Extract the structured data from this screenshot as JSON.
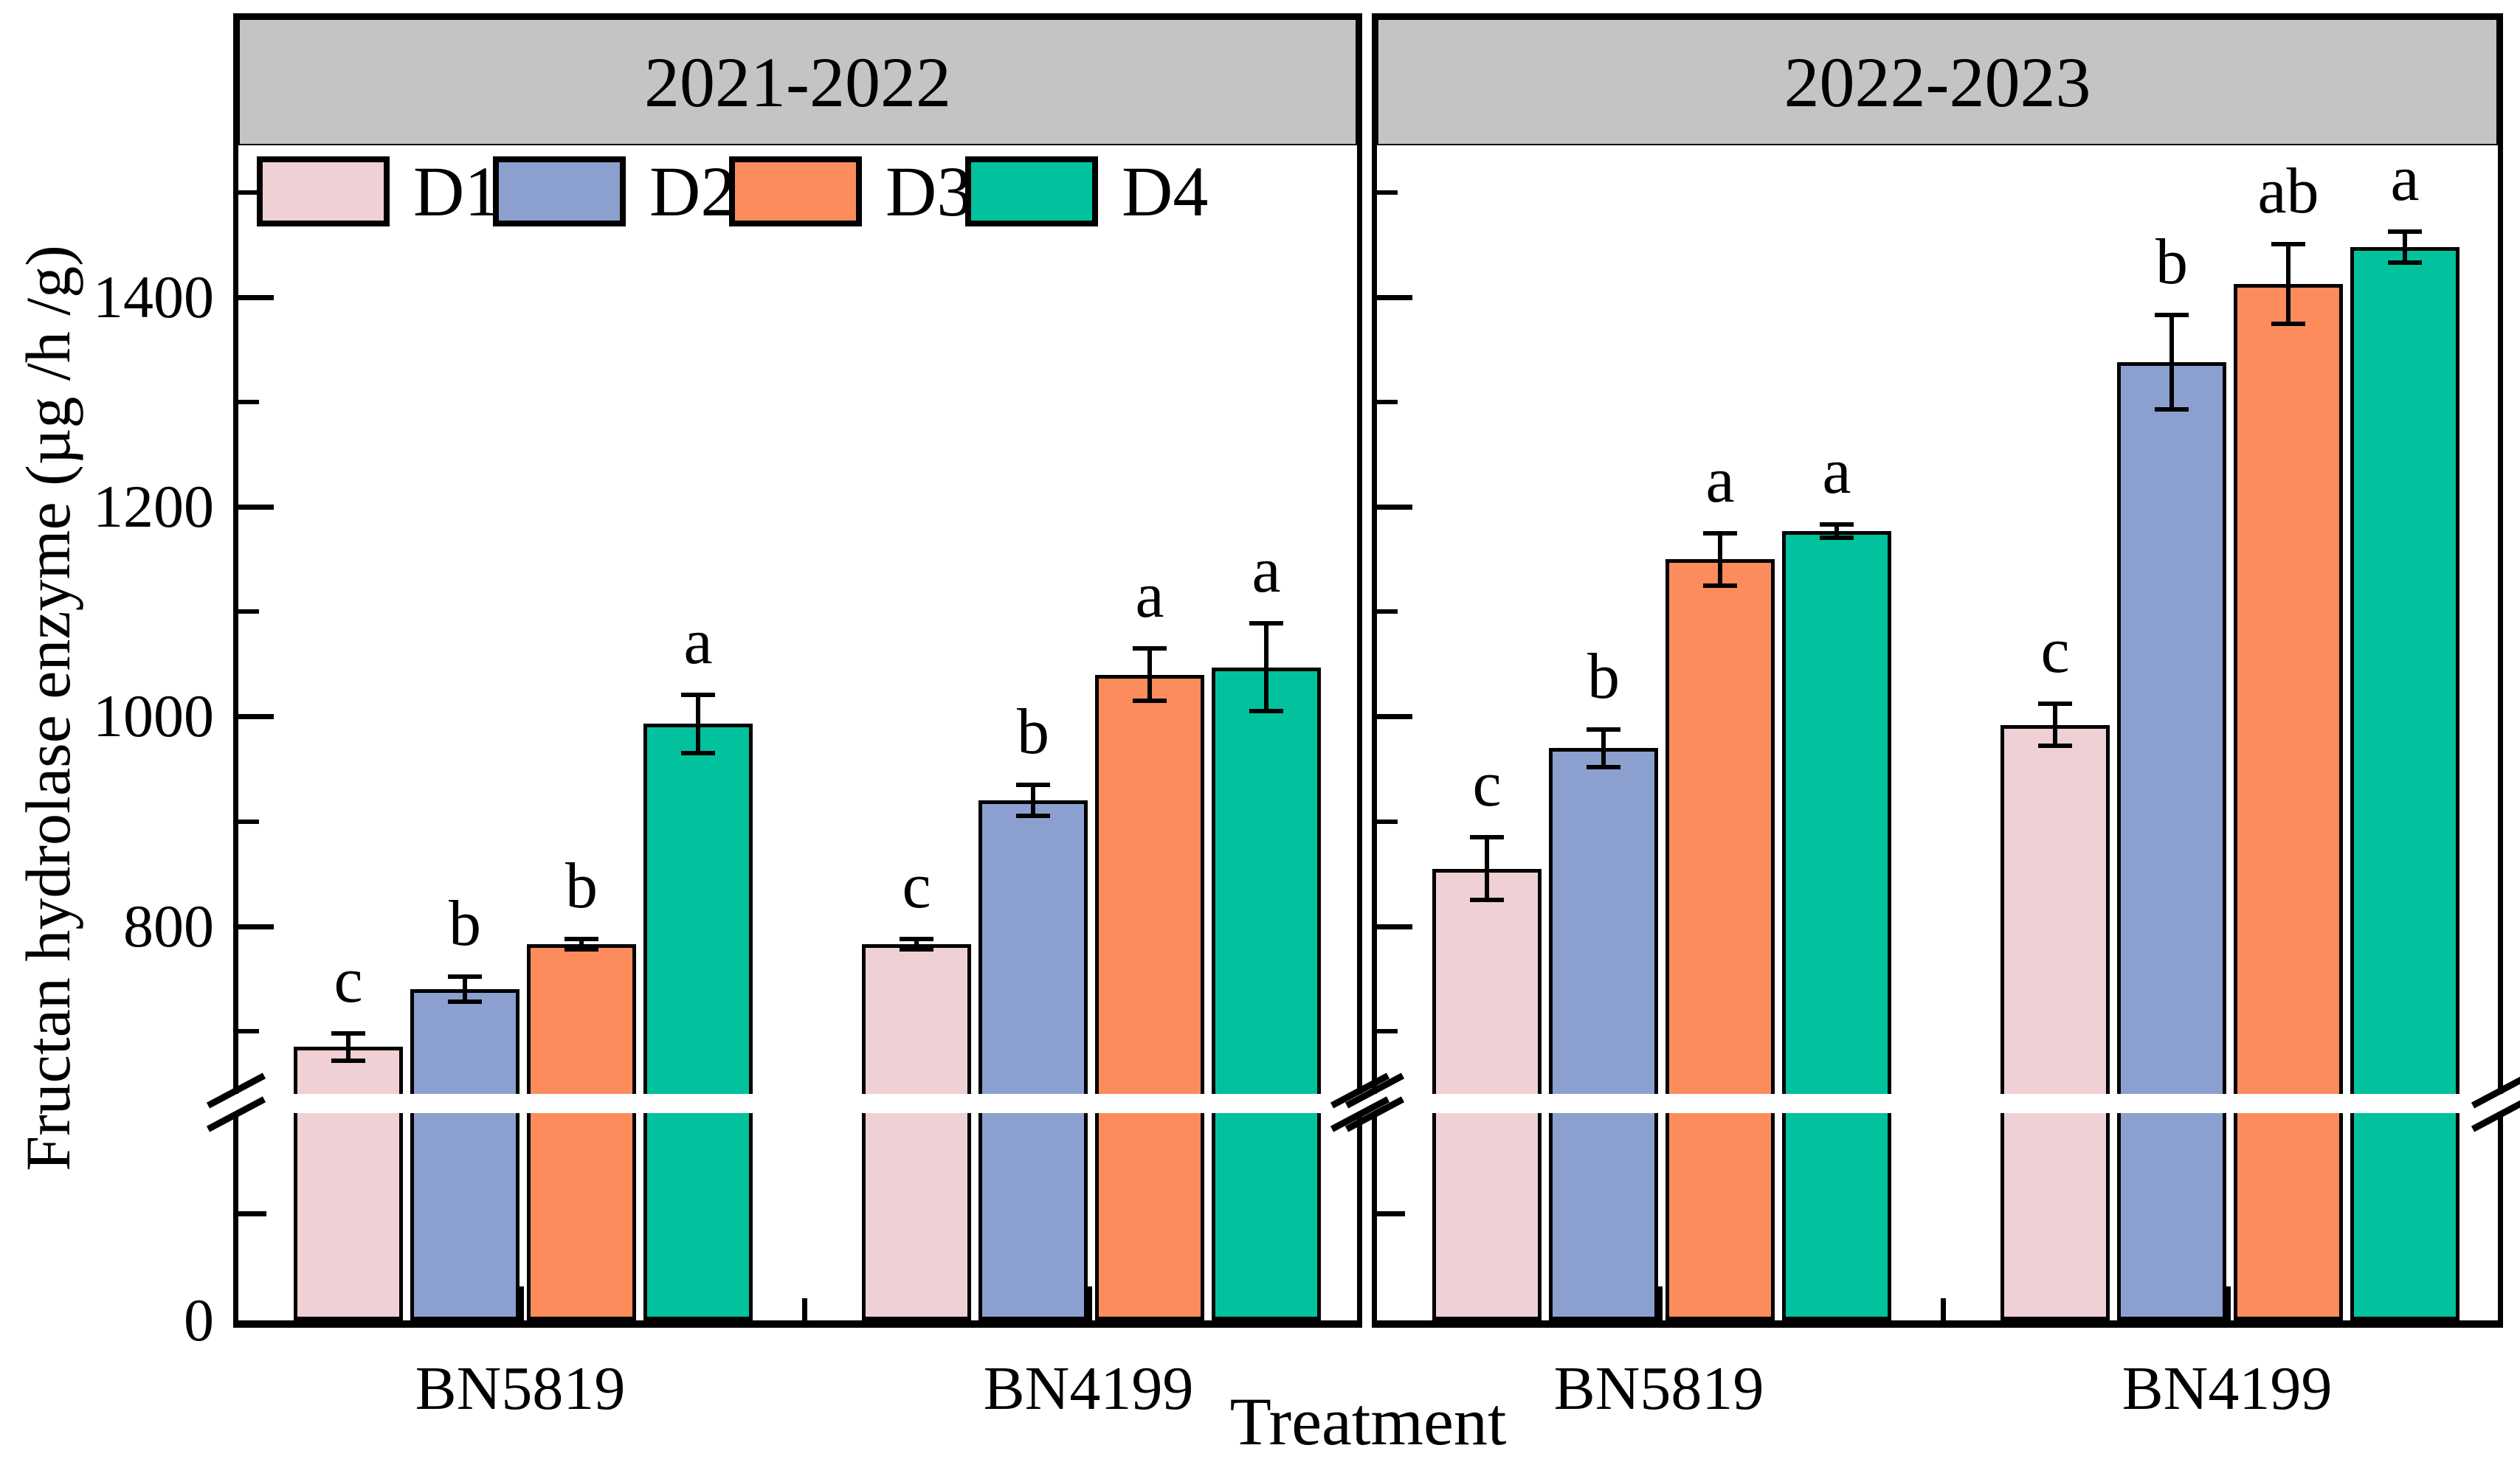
{
  "figure": {
    "y_axis_title": "Fructan hydrolase enzyme (µg /h /g)",
    "x_axis_title": "Treatment"
  },
  "style": {
    "header_bg": "#C4C4C4",
    "frame_color": "#000000",
    "break_band_color": "#FFFFFF"
  },
  "legend": {
    "items": [
      {
        "label": "D1",
        "color": "#EFD0D4"
      },
      {
        "label": "D2",
        "color": "#8BA0CE"
      },
      {
        "label": "D3",
        "color": "#FC8C5C"
      },
      {
        "label": "D4",
        "color": "#02C29E"
      }
    ]
  },
  "chart_data": {
    "type": "bar",
    "title": "",
    "ylabel": "Fructan hydrolase enzyme (µg /h /g)",
    "xlabel": "Treatment",
    "ylim": [
      0,
      1545
    ],
    "y_major_ticks": [
      800,
      1000,
      1200,
      1400
    ],
    "y_minor_ticks": [
      700,
      900,
      1100,
      1300,
      1500
    ],
    "y_tick_labels": [
      "0",
      "800",
      "1000",
      "1200",
      "1400"
    ],
    "axis_break": {
      "lower_segment_max": 200,
      "upper_segment_min": 640
    },
    "grid": "off",
    "legend_position": "top-left-inside",
    "series_names": [
      "D1",
      "D2",
      "D3",
      "D4"
    ],
    "panels": [
      {
        "title": "2021-2022",
        "groups": [
          {
            "name": "BN5819",
            "bars": [
              {
                "series": "D1",
                "value": 685,
                "error": 13,
                "letter": "c"
              },
              {
                "series": "D2",
                "value": 740,
                "error": 12,
                "letter": "b"
              },
              {
                "series": "D3",
                "value": 783,
                "error": 5,
                "letter": "b"
              },
              {
                "series": "D4",
                "value": 993,
                "error": 28,
                "letter": "a"
              }
            ]
          },
          {
            "name": "BN4199",
            "bars": [
              {
                "series": "D1",
                "value": 783,
                "error": 5,
                "letter": "c"
              },
              {
                "series": "D2",
                "value": 920,
                "error": 15,
                "letter": "b"
              },
              {
                "series": "D3",
                "value": 1040,
                "error": 25,
                "letter": "a"
              },
              {
                "series": "D4",
                "value": 1047,
                "error": 42,
                "letter": "a"
              }
            ]
          }
        ]
      },
      {
        "title": "2022-2023",
        "groups": [
          {
            "name": "BN5819",
            "bars": [
              {
                "series": "D1",
                "value": 855,
                "error": 30,
                "letter": "c"
              },
              {
                "series": "D2",
                "value": 970,
                "error": 18,
                "letter": "b"
              },
              {
                "series": "D3",
                "value": 1150,
                "error": 25,
                "letter": "a"
              },
              {
                "series": "D4",
                "value": 1177,
                "error": 6,
                "letter": "a"
              }
            ]
          },
          {
            "name": "BN4199",
            "bars": [
              {
                "series": "D1",
                "value": 992,
                "error": 20,
                "letter": "c"
              },
              {
                "series": "D2",
                "value": 1338,
                "error": 45,
                "letter": "b"
              },
              {
                "series": "D3",
                "value": 1413,
                "error": 38,
                "letter": "ab"
              },
              {
                "series": "D4",
                "value": 1448,
                "error": 15,
                "letter": "a"
              }
            ]
          }
        ]
      }
    ]
  }
}
